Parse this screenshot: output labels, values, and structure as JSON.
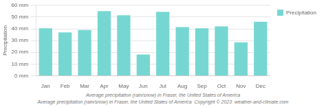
{
  "chart_data": {
    "type": "bar",
    "categories": [
      "Jan",
      "Feb",
      "Mar",
      "Apr",
      "May",
      "Jun",
      "Jul",
      "Aug",
      "Sep",
      "Oct",
      "Nov",
      "Dec"
    ],
    "series": [
      {
        "name": "Precipitation",
        "color": "#76d7d2",
        "values": [
          40.5,
          37.0,
          39.0,
          55.0,
          51.5,
          18.0,
          54.5,
          41.5,
          40.5,
          42.0,
          28.5,
          46.0
        ]
      }
    ],
    "ylabel": "Precipitation",
    "ylim": [
      0,
      60
    ],
    "yticks": [
      {
        "value": 0,
        "label": "0 mm"
      },
      {
        "value": 10,
        "label": "10 mm"
      },
      {
        "value": 20,
        "label": "20 mm"
      },
      {
        "value": 30,
        "label": "30 mm"
      },
      {
        "value": 40,
        "label": "40 mm"
      },
      {
        "value": 50,
        "label": "50 mm"
      },
      {
        "value": 60,
        "label": "60 mm"
      }
    ],
    "grid": true,
    "legend": "upper right",
    "annotations": [
      "Average precipitation (rain/snow) in Fraser, the United States of America",
      "Average precipitation (rain/snow) in Fraser, the United States of America  Copyright © 2023  weather-and-climate.com"
    ]
  }
}
